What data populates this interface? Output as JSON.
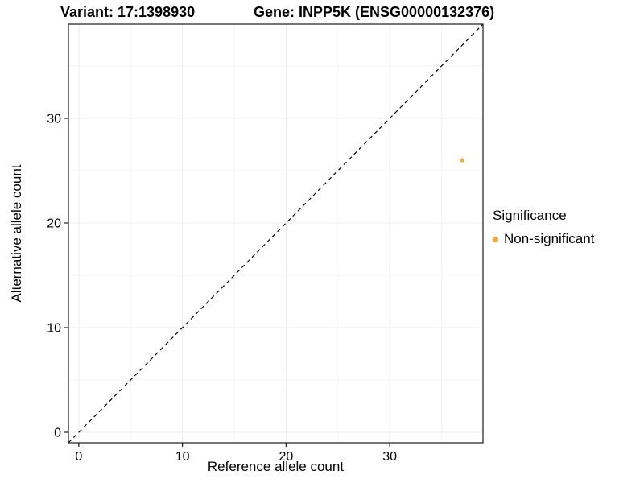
{
  "chart_data": {
    "type": "scatter",
    "title_left": "Variant: 17:1398930",
    "title_right": "Gene: INPP5K (ENSG00000132376)",
    "xlabel": "Reference allele count",
    "ylabel": "Alternative allele count",
    "xlim": [
      -1,
      39
    ],
    "ylim": [
      -1,
      39
    ],
    "xticks": [
      0,
      10,
      20,
      30
    ],
    "yticks": [
      0,
      10,
      20,
      30
    ],
    "minor_xticks": [
      5,
      15,
      25,
      35
    ],
    "minor_yticks": [
      5,
      15,
      25,
      35
    ],
    "grid": true,
    "identity_line": {
      "style": "dashed",
      "from": [
        -1,
        -1
      ],
      "to": [
        39,
        39
      ],
      "color": "#000000"
    },
    "series": [
      {
        "name": "Non-significant",
        "color": "#FAA43A",
        "points": [
          {
            "x": 37,
            "y": 26
          }
        ]
      }
    ],
    "legend": {
      "title": "Significance",
      "position": "right"
    }
  }
}
